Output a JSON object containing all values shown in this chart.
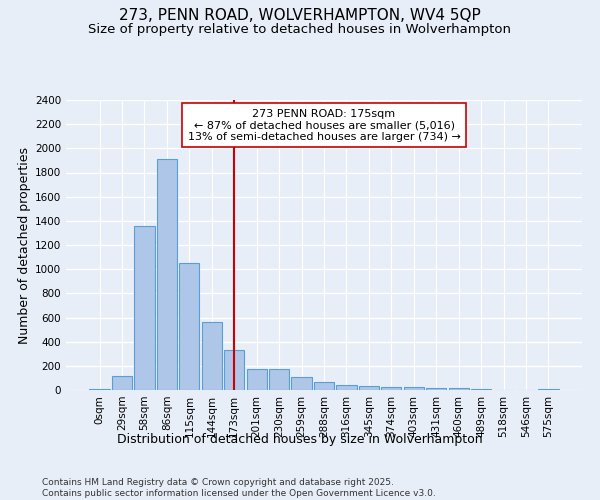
{
  "title": "273, PENN ROAD, WOLVERHAMPTON, WV4 5QP",
  "subtitle": "Size of property relative to detached houses in Wolverhampton",
  "xlabel": "Distribution of detached houses by size in Wolverhampton",
  "ylabel": "Number of detached properties",
  "footnote1": "Contains HM Land Registry data © Crown copyright and database right 2025.",
  "footnote2": "Contains public sector information licensed under the Open Government Licence v3.0.",
  "bar_labels": [
    "0sqm",
    "29sqm",
    "58sqm",
    "86sqm",
    "115sqm",
    "144sqm",
    "173sqm",
    "201sqm",
    "230sqm",
    "259sqm",
    "288sqm",
    "316sqm",
    "345sqm",
    "374sqm",
    "403sqm",
    "431sqm",
    "460sqm",
    "489sqm",
    "518sqm",
    "546sqm",
    "575sqm"
  ],
  "bar_values": [
    10,
    120,
    1360,
    1910,
    1055,
    560,
    335,
    170,
    170,
    110,
    65,
    40,
    35,
    25,
    25,
    20,
    20,
    10,
    0,
    0,
    10
  ],
  "bar_color": "#aec6e8",
  "bar_edgecolor": "#5a9fd4",
  "annotation_line1": "273 PENN ROAD: 175sqm",
  "annotation_line2": "← 87% of detached houses are smaller (5,016)",
  "annotation_line3": "13% of semi-detached houses are larger (734) →",
  "vline_x_index": 6,
  "vline_color": "#cc0000",
  "annotation_box_facecolor": "#ffffff",
  "annotation_box_edgecolor": "#cc0000",
  "ylim": [
    0,
    2400
  ],
  "yticks": [
    0,
    200,
    400,
    600,
    800,
    1000,
    1200,
    1400,
    1600,
    1800,
    2000,
    2200,
    2400
  ],
  "bg_color": "#e8eef8",
  "grid_color": "#ffffff",
  "title_fontsize": 11,
  "subtitle_fontsize": 9.5,
  "axis_label_fontsize": 9,
  "tick_fontsize": 7.5,
  "annotation_fontsize": 8,
  "footnote_fontsize": 6.5
}
